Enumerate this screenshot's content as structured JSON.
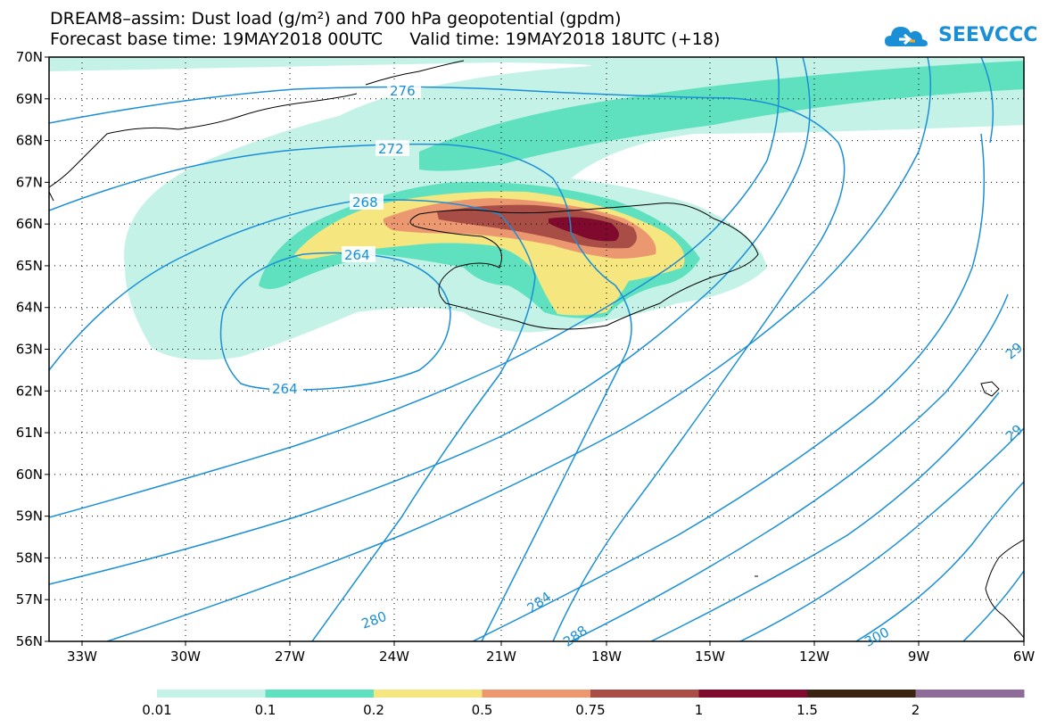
{
  "title": {
    "line1": "DREAM8–assim: Dust load (g/m²) and 700 hPa geopotential (gpdm)",
    "line2": "Forecast base time: 19MAY2018 00UTC     Valid time: 19MAY2018 18UTC (+18)"
  },
  "logo": {
    "text": "SEEVCCC",
    "icon": "cloud-icon"
  },
  "axes": {
    "lon_labels": [
      "33W",
      "30W",
      "27W",
      "24W",
      "21W",
      "18W",
      "15W",
      "12W",
      "9W",
      "6W"
    ],
    "lat_labels": [
      "70N",
      "69N",
      "68N",
      "67N",
      "66N",
      "65N",
      "64N",
      "63N",
      "62N",
      "61N",
      "60N",
      "59N",
      "58N",
      "57N",
      "56N"
    ]
  },
  "contour_labels": [
    "276",
    "272",
    "268",
    "264",
    "264",
    "280",
    "284",
    "288",
    "300",
    "29",
    "29"
  ],
  "colorbar": {
    "labels": [
      "0.01",
      "0.1",
      "0.2",
      "0.5",
      "0.75",
      "1",
      "1.5",
      "2"
    ],
    "colors": [
      "#c4f2e7",
      "#5fe1bf",
      "#f5e680",
      "#eb9870",
      "#a94e46",
      "#7f0a2e",
      "#3a2310",
      "#8f6b9a"
    ]
  },
  "colors": {
    "contour": "#1a8fd6",
    "coast": "#000000",
    "dust_001": "#c4f2e7",
    "dust_01": "#5fe1bf",
    "dust_02": "#f5e680",
    "dust_05": "#eb9870",
    "dust_075": "#a94e46",
    "dust_1": "#7f0a2e"
  }
}
